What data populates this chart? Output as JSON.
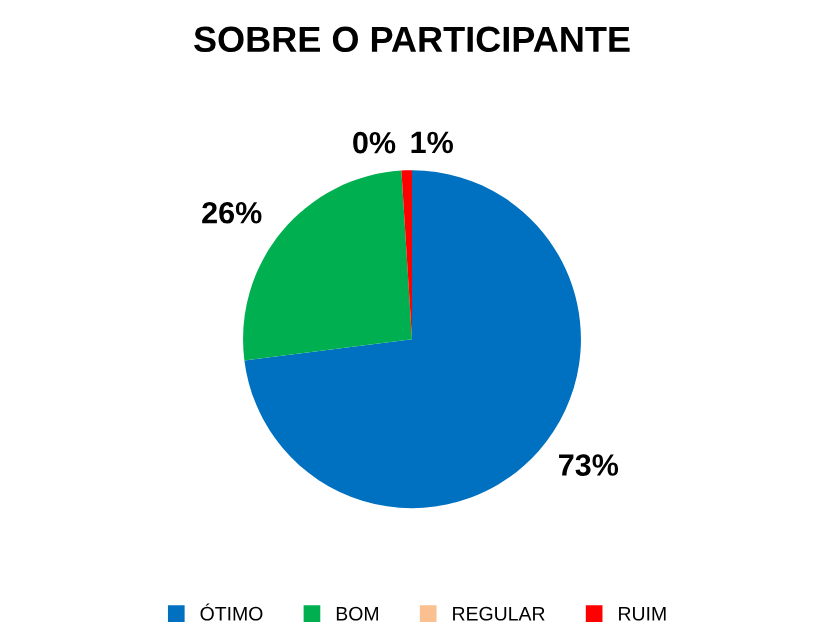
{
  "chart_data": {
    "type": "pie",
    "title": "SOBRE O PARTICIPANTE",
    "categories": [
      "ÓTIMO",
      "BOM",
      "REGULAR",
      "RUIM"
    ],
    "values": [
      73,
      26,
      0,
      1
    ],
    "colors": [
      "#0070c0",
      "#00b050",
      "#fac090",
      "#ff0000"
    ],
    "value_labels": [
      "73%",
      "26%",
      "0%",
      "1%"
    ],
    "legend": "bottom"
  }
}
